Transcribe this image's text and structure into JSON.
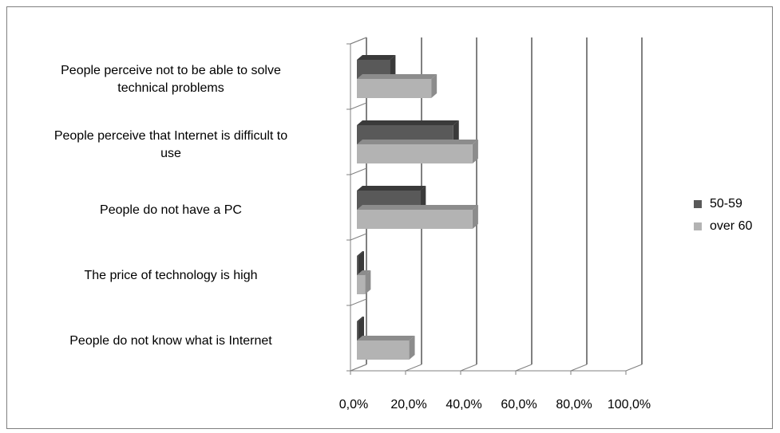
{
  "chart_data": {
    "type": "bar",
    "orientation": "horizontal",
    "categories": [
      "People perceive not to be able to solve technical problems",
      "People perceive that Internet is difficult to use",
      "People do not have a PC",
      "The price of technology is high",
      "People do not know what is Internet"
    ],
    "category_lines": [
      [
        "People perceive not to be able to solve",
        "technical problems"
      ],
      [
        "People perceive that Internet is difficult to",
        "use"
      ],
      [
        "People do not have a PC"
      ],
      [
        "The price of technology is high"
      ],
      [
        "People do not know what  is Internet"
      ]
    ],
    "series": [
      {
        "name": "50-59",
        "values": [
          0.12,
          0.35,
          0.23,
          0.005,
          0.005
        ],
        "color": "#595959",
        "side_color": "#3a3a3a"
      },
      {
        "name": "over 60",
        "values": [
          0.27,
          0.42,
          0.42,
          0.03,
          0.19
        ],
        "color": "#b3b3b3",
        "side_color": "#8c8c8c"
      }
    ],
    "xlim": [
      0,
      1
    ],
    "ticks": [
      "0,0%",
      "20,0%",
      "40,0%",
      "60,0%",
      "80,0%",
      "100,0%"
    ],
    "legend_position": "right",
    "grid": true
  }
}
